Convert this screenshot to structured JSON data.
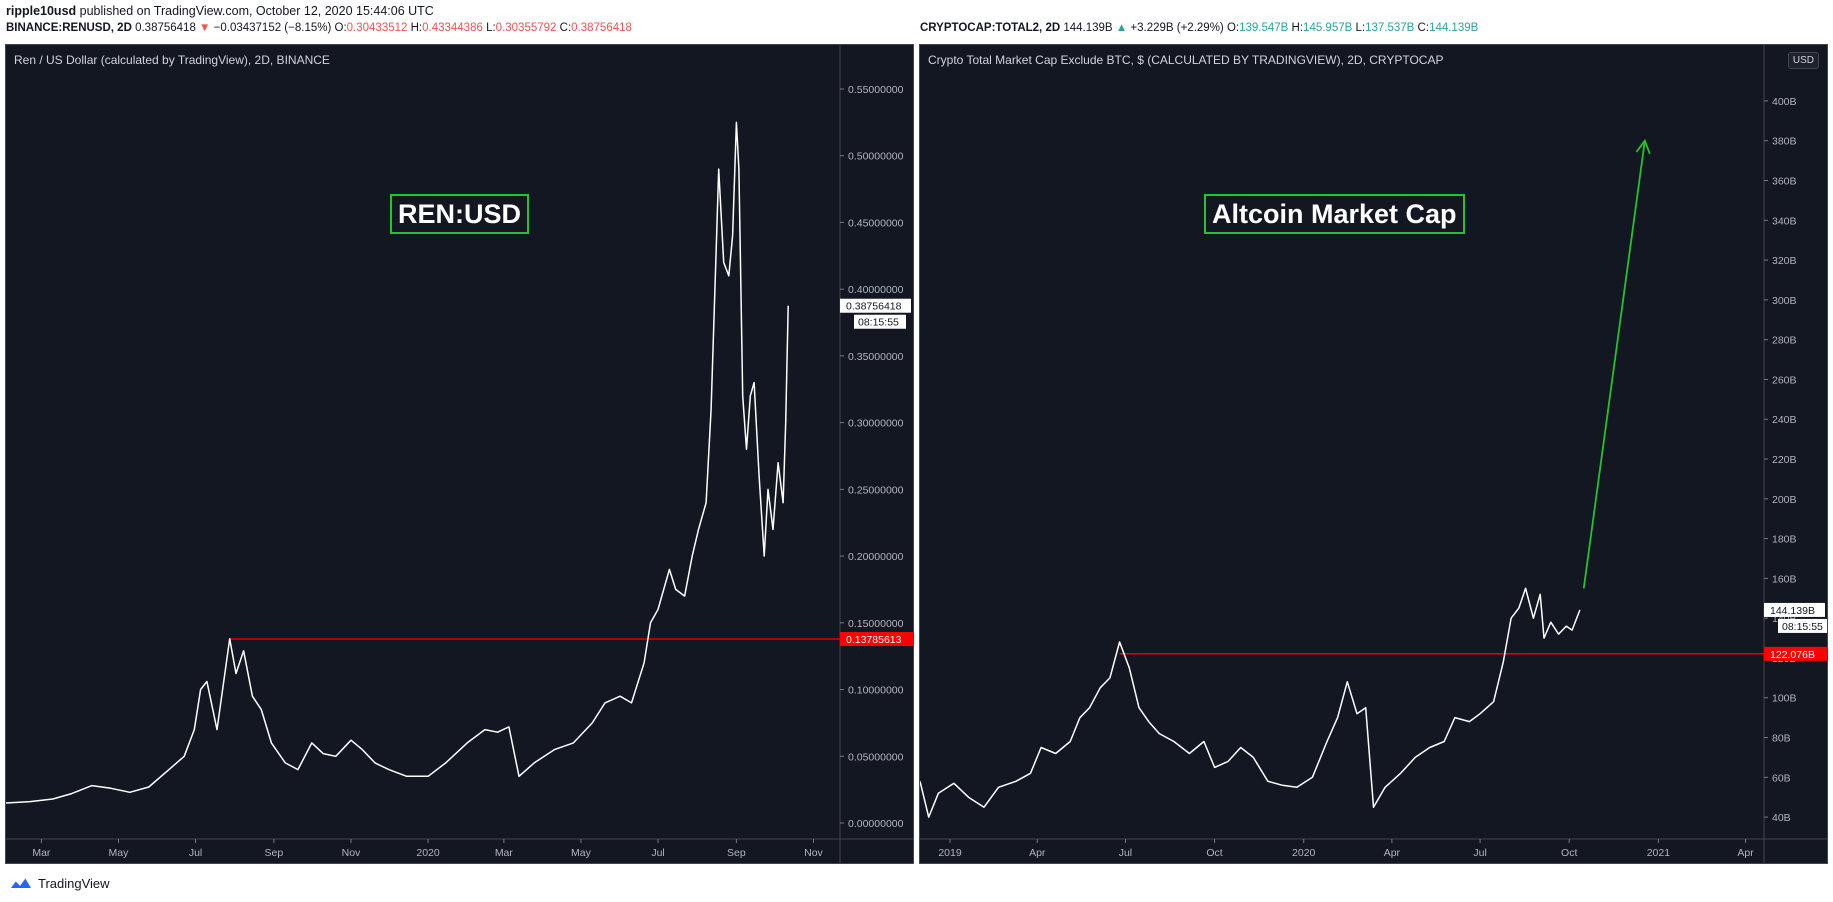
{
  "header": {
    "author": "ripple10usd",
    "published_text": "published on TradingView.com, October 12, 2020 15:44:06 UTC"
  },
  "left_header": {
    "symbol": "BINANCE:RENUSD, 2D",
    "price": "0.38756418",
    "change_arrow": "▼",
    "change": "−0.03437152 (−8.15%)",
    "o_label": "O:",
    "o": "0.30433512",
    "h_label": "H:",
    "h": "0.43344386",
    "l_label": "L:",
    "l": "0.30355792",
    "c_label": "C:",
    "c": "0.38756418"
  },
  "right_header": {
    "symbol": "CRYPTOCAP:TOTAL2, 2D",
    "price": "144.139B",
    "change_arrow": "▲",
    "change": "+3.229B (+2.29%)",
    "o_label": "O:",
    "o": "139.547B",
    "h_label": "H:",
    "h": "145.957B",
    "l_label": "L:",
    "l": "137.537B",
    "c_label": "C:",
    "c": "144.139B"
  },
  "footer": {
    "brand": "TradingView"
  },
  "colors": {
    "background": "#131722",
    "line": "#ffffff",
    "level": "#ff0000",
    "arrow": "#22c32e",
    "axis_text": "#b2b5be"
  },
  "chart_data": [
    {
      "type": "line",
      "title": "Ren / US Dollar (calculated by TradingView), 2D, BINANCE",
      "annotation": "REN:USD",
      "x_labels": [
        "Mar",
        "May",
        "Jul",
        "Sep",
        "Nov",
        "2020",
        "Mar",
        "May",
        "Jul",
        "Sep",
        "Nov"
      ],
      "y_ticks": [
        "0.55000000",
        "0.50000000",
        "0.45000000",
        "0.40000000",
        "0.35000000",
        "0.30000000",
        "0.25000000",
        "0.20000000",
        "0.15000000",
        "0.10000000",
        "0.05000000",
        "0.00000000"
      ],
      "ylim": [
        -0.012,
        0.553
      ],
      "series": [
        {
          "values": [
            [
              "2019-02-01",
              0.015
            ],
            [
              "2019-02-20",
              0.016
            ],
            [
              "2019-03-10",
              0.018
            ],
            [
              "2019-03-25",
              0.022
            ],
            [
              "2019-04-10",
              0.028
            ],
            [
              "2019-04-25",
              0.026
            ],
            [
              "2019-05-10",
              0.023
            ],
            [
              "2019-05-25",
              0.027
            ],
            [
              "2019-06-10",
              0.04
            ],
            [
              "2019-06-22",
              0.05
            ],
            [
              "2019-06-30",
              0.07
            ],
            [
              "2019-07-05",
              0.1
            ],
            [
              "2019-07-10",
              0.106
            ],
            [
              "2019-07-18",
              0.07
            ],
            [
              "2019-07-28",
              0.138
            ],
            [
              "2019-08-02",
              0.112
            ],
            [
              "2019-08-08",
              0.129
            ],
            [
              "2019-08-15",
              0.095
            ],
            [
              "2019-08-22",
              0.085
            ],
            [
              "2019-08-30",
              0.06
            ],
            [
              "2019-09-10",
              0.045
            ],
            [
              "2019-09-20",
              0.04
            ],
            [
              "2019-10-01",
              0.06
            ],
            [
              "2019-10-10",
              0.052
            ],
            [
              "2019-10-20",
              0.05
            ],
            [
              "2019-11-01",
              0.062
            ],
            [
              "2019-11-10",
              0.055
            ],
            [
              "2019-11-20",
              0.045
            ],
            [
              "2019-12-01",
              0.04
            ],
            [
              "2019-12-15",
              0.035
            ],
            [
              "2020-01-01",
              0.035
            ],
            [
              "2020-01-15",
              0.045
            ],
            [
              "2020-02-01",
              0.06
            ],
            [
              "2020-02-15",
              0.07
            ],
            [
              "2020-02-25",
              0.068
            ],
            [
              "2020-03-05",
              0.072
            ],
            [
              "2020-03-13",
              0.035
            ],
            [
              "2020-03-25",
              0.045
            ],
            [
              "2020-04-10",
              0.055
            ],
            [
              "2020-04-25",
              0.06
            ],
            [
              "2020-05-10",
              0.075
            ],
            [
              "2020-05-20",
              0.09
            ],
            [
              "2020-06-01",
              0.095
            ],
            [
              "2020-06-10",
              0.09
            ],
            [
              "2020-06-20",
              0.12
            ],
            [
              "2020-06-25",
              0.15
            ],
            [
              "2020-07-01",
              0.16
            ],
            [
              "2020-07-10",
              0.19
            ],
            [
              "2020-07-15",
              0.175
            ],
            [
              "2020-07-22",
              0.17
            ],
            [
              "2020-07-28",
              0.2
            ],
            [
              "2020-08-02",
              0.22
            ],
            [
              "2020-08-08",
              0.24
            ],
            [
              "2020-08-12",
              0.31
            ],
            [
              "2020-08-16",
              0.43
            ],
            [
              "2020-08-18",
              0.49
            ],
            [
              "2020-08-22",
              0.42
            ],
            [
              "2020-08-26",
              0.41
            ],
            [
              "2020-08-29",
              0.44
            ],
            [
              "2020-09-01",
              0.525
            ],
            [
              "2020-09-03",
              0.49
            ],
            [
              "2020-09-06",
              0.32
            ],
            [
              "2020-09-09",
              0.28
            ],
            [
              "2020-09-12",
              0.32
            ],
            [
              "2020-09-15",
              0.33
            ],
            [
              "2020-09-19",
              0.26
            ],
            [
              "2020-09-23",
              0.2
            ],
            [
              "2020-09-26",
              0.25
            ],
            [
              "2020-09-30",
              0.22
            ],
            [
              "2020-10-04",
              0.27
            ],
            [
              "2020-10-08",
              0.24
            ],
            [
              "2020-10-10",
              0.3
            ],
            [
              "2020-10-12",
              0.3876
            ]
          ]
        }
      ],
      "level": {
        "value": 0.13785613,
        "label": "0.13785613",
        "from": "2019-07-28"
      },
      "last_label": "0.38756418",
      "countdown": "08:15:55"
    },
    {
      "type": "line",
      "title": "Crypto Total Market Cap Exclude BTC, $ (CALCULATED BY TRADINGVIEW), 2D, CRYPTOCAP",
      "annotation": "Altcoin Market Cap",
      "currency_button": "USD",
      "x_labels": [
        "2019",
        "Apr",
        "Jul",
        "Oct",
        "2020",
        "Apr",
        "Jul",
        "Oct",
        "2021",
        "Apr"
      ],
      "y_ticks": [
        "400B",
        "380B",
        "360B",
        "340B",
        "320B",
        "300B",
        "280B",
        "260B",
        "240B",
        "220B",
        "200B",
        "180B",
        "160B",
        "140B",
        "120B",
        "100B",
        "80B",
        "60B",
        "40B"
      ],
      "ylim": [
        29,
        408
      ],
      "series": [
        {
          "values": [
            [
              "2018-12-01",
              58
            ],
            [
              "2018-12-10",
              40
            ],
            [
              "2018-12-20",
              52
            ],
            [
              "2019-01-05",
              57
            ],
            [
              "2019-01-20",
              50
            ],
            [
              "2019-02-05",
              45
            ],
            [
              "2019-02-20",
              55
            ],
            [
              "2019-03-10",
              58
            ],
            [
              "2019-03-25",
              62
            ],
            [
              "2019-04-05",
              75
            ],
            [
              "2019-04-20",
              72
            ],
            [
              "2019-05-05",
              78
            ],
            [
              "2019-05-15",
              90
            ],
            [
              "2019-05-25",
              95
            ],
            [
              "2019-06-05",
              105
            ],
            [
              "2019-06-15",
              110
            ],
            [
              "2019-06-25",
              128
            ],
            [
              "2019-07-05",
              115
            ],
            [
              "2019-07-15",
              95
            ],
            [
              "2019-07-25",
              88
            ],
            [
              "2019-08-05",
              82
            ],
            [
              "2019-08-20",
              78
            ],
            [
              "2019-09-05",
              72
            ],
            [
              "2019-09-20",
              78
            ],
            [
              "2019-10-01",
              65
            ],
            [
              "2019-10-15",
              68
            ],
            [
              "2019-10-28",
              75
            ],
            [
              "2019-11-10",
              70
            ],
            [
              "2019-11-25",
              58
            ],
            [
              "2019-12-10",
              56
            ],
            [
              "2019-12-25",
              55
            ],
            [
              "2020-01-10",
              60
            ],
            [
              "2020-01-25",
              78
            ],
            [
              "2020-02-05",
              90
            ],
            [
              "2020-02-15",
              108
            ],
            [
              "2020-02-25",
              92
            ],
            [
              "2020-03-05",
              95
            ],
            [
              "2020-03-13",
              45
            ],
            [
              "2020-03-25",
              55
            ],
            [
              "2020-04-10",
              62
            ],
            [
              "2020-04-25",
              70
            ],
            [
              "2020-05-10",
              75
            ],
            [
              "2020-05-25",
              78
            ],
            [
              "2020-06-05",
              90
            ],
            [
              "2020-06-20",
              88
            ],
            [
              "2020-07-01",
              92
            ],
            [
              "2020-07-15",
              98
            ],
            [
              "2020-07-25",
              118
            ],
            [
              "2020-08-02",
              140
            ],
            [
              "2020-08-10",
              145
            ],
            [
              "2020-08-17",
              155
            ],
            [
              "2020-08-25",
              140
            ],
            [
              "2020-09-01",
              152
            ],
            [
              "2020-09-05",
              130
            ],
            [
              "2020-09-12",
              138
            ],
            [
              "2020-09-20",
              132
            ],
            [
              "2020-09-28",
              136
            ],
            [
              "2020-10-04",
              134
            ],
            [
              "2020-10-12",
              144.139
            ]
          ]
        }
      ],
      "level": {
        "value": 122.076,
        "label": "122.076B",
        "from": "2019-06-25"
      },
      "projection_arrow": {
        "from": [
          "2020-10-16",
          155
        ],
        "to": [
          "2020-12-18",
          380
        ]
      },
      "last_label": "144.139B",
      "countdown": "08:15:55"
    }
  ]
}
